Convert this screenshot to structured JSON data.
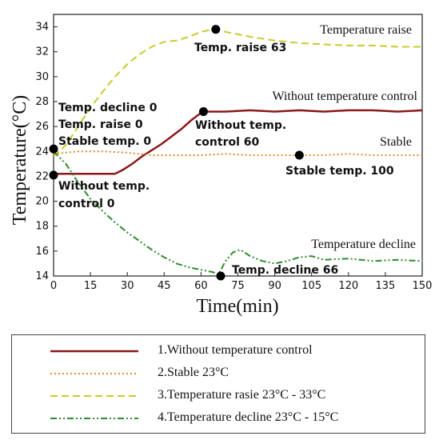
{
  "chart_data": {
    "type": "line",
    "xlabel": "Time(min)",
    "ylabel": "Temperature(°C)",
    "xlim": [
      0,
      150
    ],
    "ylim": [
      14,
      35
    ],
    "xticks": [
      "0",
      "15",
      "30",
      "45",
      "60",
      "75",
      "90",
      "105",
      "120",
      "135",
      "150"
    ],
    "yticks": [
      "14",
      "16",
      "18",
      "20",
      "22",
      "24",
      "26",
      "28",
      "30",
      "32",
      "34"
    ],
    "series": [
      {
        "key": "control",
        "color": "#8B1A1A",
        "dash": "",
        "line_label": "Without temperature control",
        "points": [
          [
            0,
            22.2
          ],
          [
            5,
            22.2
          ],
          [
            10,
            22.2
          ],
          [
            15,
            22.2
          ],
          [
            20,
            22.2
          ],
          [
            25,
            22.2
          ],
          [
            28,
            22.5
          ],
          [
            32,
            23.0
          ],
          [
            36,
            23.6
          ],
          [
            40,
            24.1
          ],
          [
            44,
            24.6
          ],
          [
            48,
            25.2
          ],
          [
            52,
            25.8
          ],
          [
            56,
            26.5
          ],
          [
            60,
            27.1
          ],
          [
            63,
            27.2
          ],
          [
            70,
            27.2
          ],
          [
            80,
            27.3
          ],
          [
            90,
            27.2
          ],
          [
            100,
            27.3
          ],
          [
            110,
            27.2
          ],
          [
            120,
            27.3
          ],
          [
            130,
            27.3
          ],
          [
            140,
            27.2
          ],
          [
            150,
            27.3
          ]
        ]
      },
      {
        "key": "stable",
        "color": "#E08A2E",
        "dash": "2,3",
        "line_label": "Stable",
        "points": [
          [
            0,
            23.8
          ],
          [
            10,
            24.0
          ],
          [
            20,
            24.0
          ],
          [
            30,
            23.9
          ],
          [
            40,
            23.7
          ],
          [
            50,
            23.7
          ],
          [
            60,
            23.7
          ],
          [
            70,
            23.8
          ],
          [
            80,
            23.7
          ],
          [
            90,
            23.7
          ],
          [
            100,
            23.7
          ],
          [
            110,
            23.7
          ],
          [
            120,
            23.8
          ],
          [
            130,
            23.7
          ],
          [
            140,
            23.7
          ],
          [
            150,
            23.7
          ]
        ]
      },
      {
        "key": "raise",
        "color": "#C8CC2A",
        "dash": "9,5",
        "line_label": "Temperature raise",
        "points": [
          [
            0,
            23.6
          ],
          [
            5,
            24.5
          ],
          [
            10,
            26.0
          ],
          [
            15,
            27.5
          ],
          [
            20,
            28.8
          ],
          [
            25,
            30.0
          ],
          [
            30,
            31.0
          ],
          [
            35,
            31.8
          ],
          [
            40,
            32.4
          ],
          [
            45,
            32.8
          ],
          [
            50,
            32.9
          ],
          [
            55,
            33.2
          ],
          [
            60,
            33.6
          ],
          [
            65,
            33.8
          ],
          [
            70,
            33.6
          ],
          [
            75,
            33.4
          ],
          [
            80,
            33.2
          ],
          [
            90,
            32.9
          ],
          [
            100,
            32.7
          ],
          [
            110,
            32.6
          ],
          [
            120,
            32.5
          ],
          [
            130,
            32.5
          ],
          [
            140,
            32.4
          ],
          [
            150,
            32.4
          ]
        ]
      },
      {
        "key": "decline",
        "color": "#2E8B2E",
        "dash": "8,3,2,3,2,3",
        "line_label": "Temperature decline",
        "points": [
          [
            0,
            24.0
          ],
          [
            5,
            23.0
          ],
          [
            10,
            21.5
          ],
          [
            15,
            20.2
          ],
          [
            20,
            19.2
          ],
          [
            25,
            18.3
          ],
          [
            30,
            17.5
          ],
          [
            35,
            16.8
          ],
          [
            40,
            16.1
          ],
          [
            45,
            15.5
          ],
          [
            50,
            15.0
          ],
          [
            55,
            14.7
          ],
          [
            60,
            14.5
          ],
          [
            65,
            14.3
          ],
          [
            67,
            14.1
          ],
          [
            70,
            15.2
          ],
          [
            73,
            15.9
          ],
          [
            76,
            16.1
          ],
          [
            80,
            15.6
          ],
          [
            85,
            15.2
          ],
          [
            90,
            15.0
          ],
          [
            95,
            15.2
          ],
          [
            100,
            15.5
          ],
          [
            105,
            15.6
          ],
          [
            110,
            15.3
          ],
          [
            120,
            15.4
          ],
          [
            130,
            15.2
          ],
          [
            140,
            15.3
          ],
          [
            150,
            15.2
          ]
        ]
      }
    ],
    "markers": [
      {
        "x": 0,
        "y": 24.2,
        "label": "Temp. decline 0"
      },
      {
        "x": 0,
        "y": 24.2,
        "label": "Temp. raise 0"
      },
      {
        "x": 0,
        "y": 24.2,
        "label": "Stable temp. 0"
      },
      {
        "x": 0,
        "y": 22.1,
        "label": "Without temp. control 0"
      },
      {
        "x": 66,
        "y": 33.8,
        "label": "Temp. raise 63"
      },
      {
        "x": 61,
        "y": 27.2,
        "label": "Without temp. control 60"
      },
      {
        "x": 100,
        "y": 23.7,
        "label": "Stable temp. 100"
      },
      {
        "x": 68,
        "y": 14.0,
        "label": "Temp. decline 66"
      }
    ],
    "annotation_lines": [
      {
        "text": "Temp. decline 0"
      },
      {
        "text": "Temp. raise 0"
      },
      {
        "text": "Stable temp. 0"
      },
      {
        "text": "Without temp."
      },
      {
        "text": "control 0"
      },
      {
        "text": "Temp. raise 63"
      },
      {
        "text": "Without temp."
      },
      {
        "text": "control 60"
      },
      {
        "text": "Stable temp. 100"
      },
      {
        "text": "Temp. decline 66"
      }
    ],
    "grid": false,
    "legend_position": "bottom"
  },
  "legend": [
    {
      "label": "1.Without temperature control",
      "color": "#8B1A1A",
      "dash": ""
    },
    {
      "label": "2.Stable 23°C",
      "color": "#E08A2E",
      "dash": "2,3"
    },
    {
      "label": "3.Temperature rasie 23°C - 33°C",
      "color": "#C8CC2A",
      "dash": "9,5"
    },
    {
      "label": "4.Temperature decline 23°C - 15°C",
      "color": "#2E8B2E",
      "dash": "8,3,2,3,2,3"
    }
  ]
}
